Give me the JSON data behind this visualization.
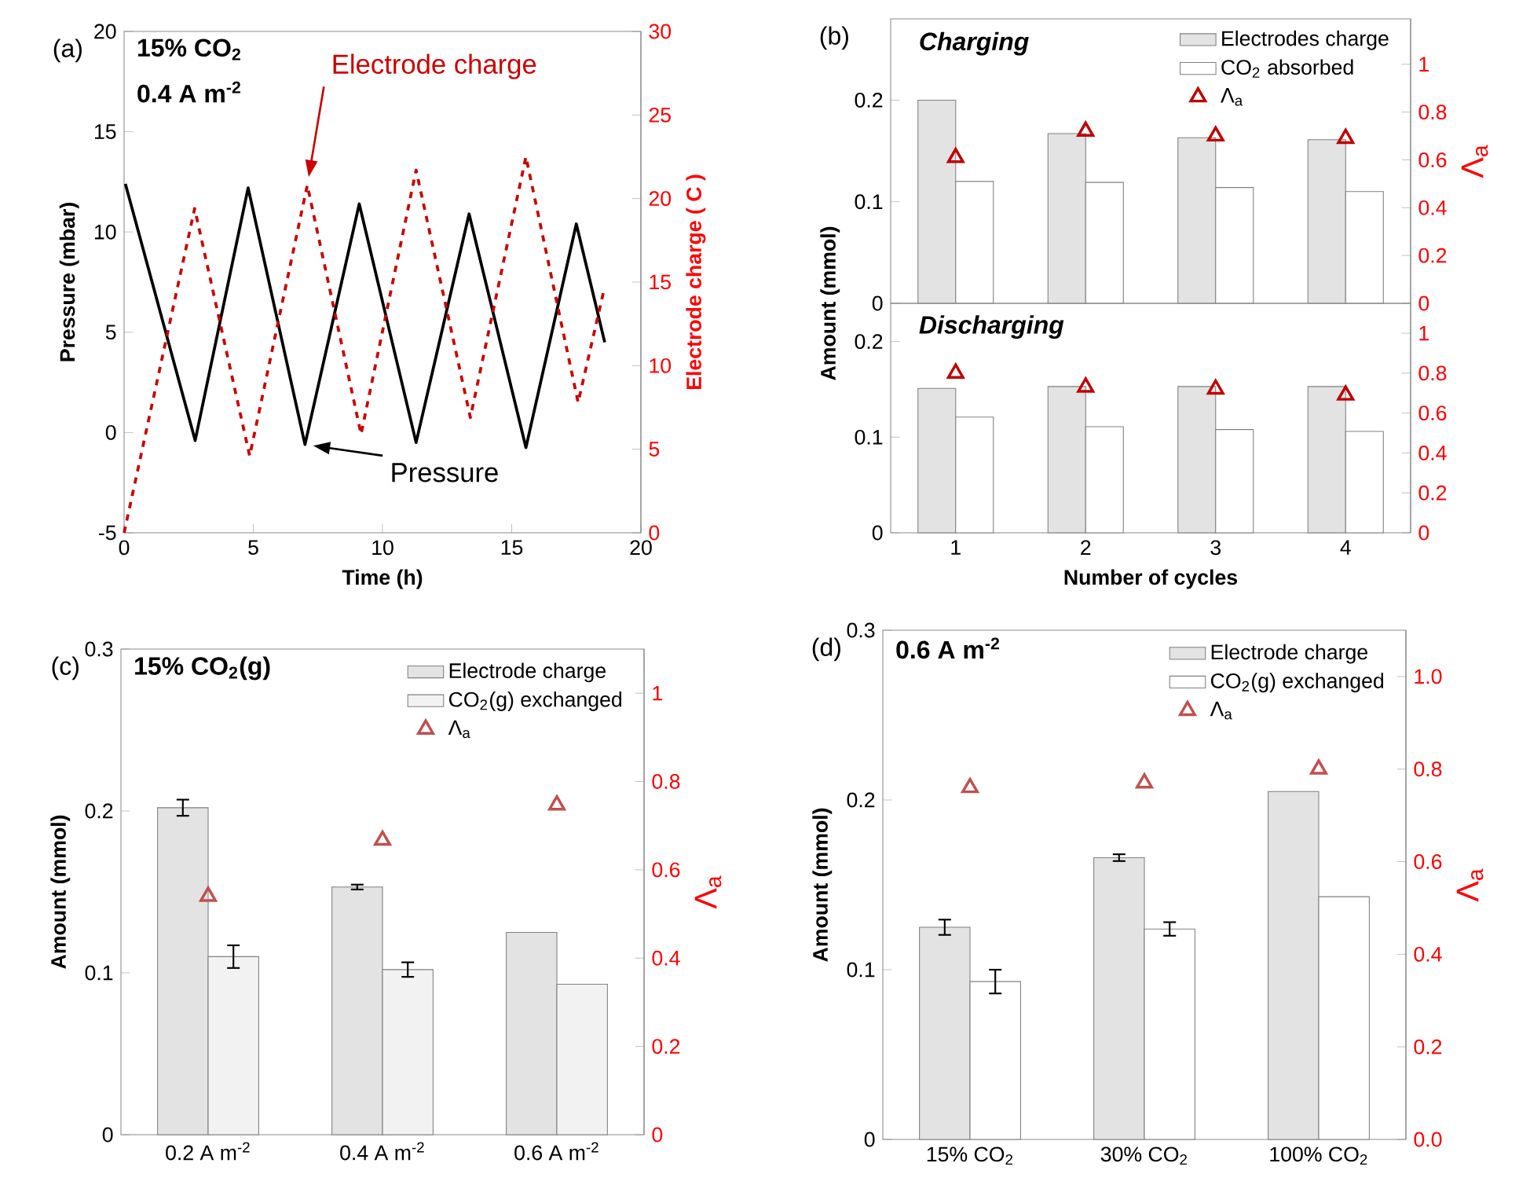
{
  "chart_data": [
    {
      "type": "line",
      "xlabel": "Time (h)",
      "ylabel": "Pressure (mbar)",
      "y2label": "Electrode charge ( C )",
      "annotations": [
        "(a)",
        "15% CO$_{2}$",
        "0.4 A m$^{-2}$"
      ],
      "xlim": [
        0,
        20
      ],
      "xticks": [
        0,
        5,
        10,
        15,
        20
      ],
      "ylim": [
        -5,
        20
      ],
      "yticks": [
        -5,
        0,
        5,
        10,
        15,
        20
      ],
      "y2lim": [
        0,
        30
      ],
      "y2ticks": [
        0,
        5,
        10,
        15,
        20,
        25,
        30
      ],
      "series": [
        {
          "name": "Pressure",
          "color": "#000000",
          "line_style": "solid",
          "x": [
            0.05,
            2.75,
            4.8,
            7.0,
            9.1,
            11.3,
            13.35,
            15.55,
            17.5,
            18.6
          ],
          "values": [
            12.4,
            -0.4,
            12.2,
            -0.6,
            11.4,
            -0.5,
            10.9,
            -0.75,
            10.4,
            4.5
          ]
        },
        {
          "name": "Electrode charge",
          "color": "#cc0000",
          "line_style": "dashed",
          "axis": "y2",
          "x": [
            0,
            2.73,
            4.86,
            7.09,
            9.17,
            11.3,
            13.4,
            15.55,
            17.57,
            18.58
          ],
          "values": [
            0,
            19.4,
            4.6,
            20.8,
            5.9,
            21.7,
            6.9,
            22.5,
            7.8,
            14.6
          ]
        }
      ]
    },
    {
      "type": "bar",
      "title": "Charging",
      "ylabel": "Amount (mmol)",
      "y2label": "Λ$_{a}$",
      "annotations": [
        "(b)"
      ],
      "categories": [
        "1",
        "2",
        "3",
        "4"
      ],
      "tick_labels": "y",
      "ylim": [
        0,
        0.28
      ],
      "yticks": [
        0,
        0.1,
        0.2
      ],
      "y2lim": [
        0,
        1.19
      ],
      "y2ticks": [
        0,
        0.2,
        0.4,
        0.6,
        0.8,
        1
      ],
      "legend": "top right",
      "marker": "triangle",
      "series": [
        {
          "name": "Electrodes charge",
          "color": "#e3e3e3",
          "values": [
            0.2,
            0.167,
            0.163,
            0.161
          ]
        },
        {
          "name": "CO$_{2}$ absorbed",
          "color": "#ffffff",
          "values": [
            0.12,
            0.119,
            0.114,
            0.11
          ]
        },
        {
          "name": "Λ$_{a}$",
          "type": "scatter",
          "axis": "y2",
          "color": "#c00000",
          "values": [
            0.61,
            0.72,
            0.7,
            0.69
          ]
        }
      ]
    },
    {
      "type": "bar",
      "title": "Discharging",
      "xlabel": "Number of cycles",
      "categories": [
        "1",
        "2",
        "3",
        "4"
      ],
      "ylim": [
        0,
        0.24
      ],
      "yticks": [
        0,
        0.1,
        0.2
      ],
      "y2lim": [
        0,
        1.15
      ],
      "y2ticks": [
        0,
        0.2,
        0.4,
        0.6,
        0.8,
        1
      ],
      "marker": "triangle",
      "series": [
        {
          "color": "#e3e3e3",
          "values": [
            0.151,
            0.153,
            0.153,
            0.153
          ]
        },
        {
          "color": "#ffffff",
          "values": [
            0.121,
            0.111,
            0.108,
            0.106
          ]
        },
        {
          "type": "scatter",
          "axis": "y2",
          "color": "#c00000",
          "values": [
            0.8,
            0.73,
            0.72,
            0.69
          ]
        }
      ]
    },
    {
      "type": "bar",
      "ylabel": "Amount (mmol)",
      "y2label": "Λ$_{a}$",
      "annotations": [
        "(c)",
        "15% CO$_{2}$(g)"
      ],
      "categories": [
        "0.2 A m$^{-2}$",
        "0.4 A m$^{-2}$",
        "0.6 A m$^{-2}$"
      ],
      "ylim": [
        0,
        0.3
      ],
      "yticks": [
        0,
        0.1,
        0.2,
        0.3
      ],
      "y2lim": [
        0,
        1.1
      ],
      "y2ticks": [
        0,
        0.2,
        0.4,
        0.6,
        0.8,
        1
      ],
      "legend": "top right",
      "marker": "triangle",
      "series": [
        {
          "name": "Electrode charge",
          "color": "#e3e3e3",
          "values": [
            0.202,
            0.153,
            0.125
          ],
          "errors": [
            0.005,
            0.0015,
            null
          ]
        },
        {
          "name": "CO$_{2}$(g) exchanged",
          "color": "#f2f2f2",
          "values": [
            0.11,
            0.102,
            0.093
          ],
          "errors": [
            0.007,
            0.0045,
            null
          ]
        },
        {
          "name": "Λ$_{a}$",
          "type": "scatter",
          "axis": "y2",
          "color": "#c0504d",
          "values": [
            0.54,
            0.667,
            0.747
          ]
        }
      ]
    },
    {
      "type": "bar",
      "ylabel": "Amount (mmol)",
      "y2label": "Λ$_{a}$",
      "annotations": [
        "(d)",
        "0.6 A m$^{-2}$"
      ],
      "categories": [
        "15% CO$_{2}$",
        "30% CO$_{2}$",
        "100% CO$_{2}$"
      ],
      "ylim": [
        0,
        0.3
      ],
      "yticks": [
        0,
        0.1,
        0.2,
        0.3
      ],
      "y2lim": [
        0,
        1.1
      ],
      "y2ticks": [
        {
          "value": 0,
          "label": "0.0"
        },
        {
          "value": 0.2,
          "label": "0.2"
        },
        {
          "value": 0.4,
          "label": "0.4"
        },
        {
          "value": 0.6,
          "label": "0.6"
        },
        {
          "value": 0.8,
          "label": "0.8"
        },
        {
          "value": 1,
          "label": "1.0"
        }
      ],
      "legend": "top right",
      "marker": "triangle",
      "series": [
        {
          "name": "Electrode charge",
          "color": "#e3e3e3",
          "values": [
            0.125,
            0.166,
            0.205
          ],
          "errors": [
            0.0045,
            0.002,
            null
          ]
        },
        {
          "name": "CO$_{2}$(g) exchanged",
          "color": "#ffffff",
          "values": [
            0.093,
            0.124,
            0.143
          ],
          "errors": [
            0.007,
            0.004,
            null
          ]
        },
        {
          "name": "Λ$_{a}$",
          "type": "scatter",
          "axis": "y2",
          "color": "#c0504d",
          "values": [
            0.76,
            0.77,
            0.8
          ]
        }
      ]
    }
  ]
}
